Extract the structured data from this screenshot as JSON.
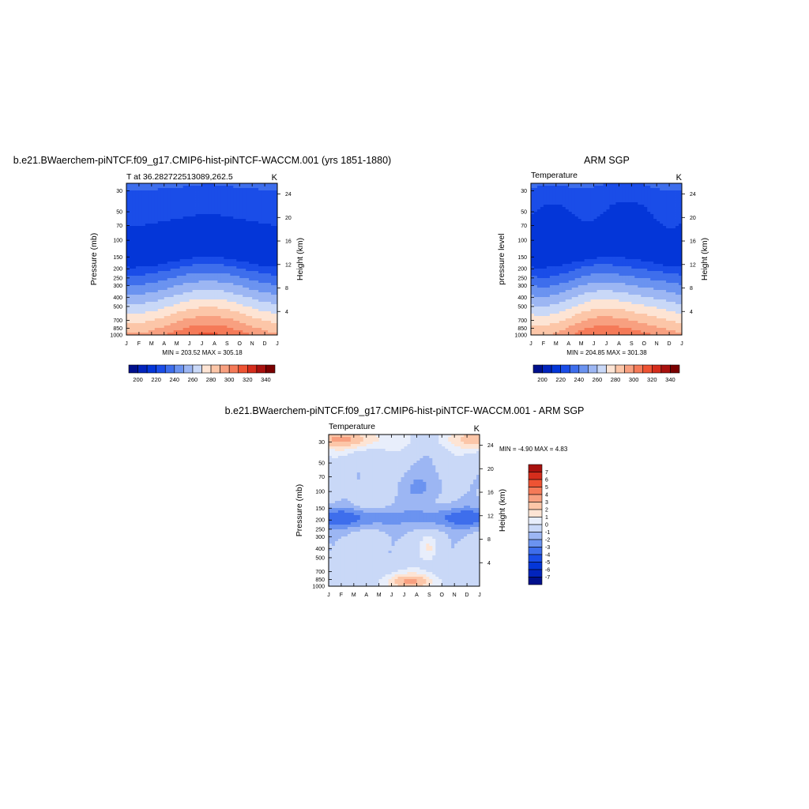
{
  "palettes": {
    "temperature": [
      "#00108c",
      "#0224bd",
      "#0436d8",
      "#1a4de8",
      "#3e6eec",
      "#6b93f0",
      "#9cb6f3",
      "#c9d8f7",
      "#fde4d4",
      "#fcc6a8",
      "#f8a080",
      "#f57a58",
      "#ee5333",
      "#d52d1c",
      "#a8110e",
      "#7a0000"
    ],
    "difference": [
      "#00108c",
      "#0224bd",
      "#0436d8",
      "#1a4de8",
      "#3e6eec",
      "#6b93f0",
      "#9cb6f3",
      "#c9d8f7",
      "#e8eefb",
      "#fde4d4",
      "#fcc6a8",
      "#f8a080",
      "#f57a58",
      "#ee5333",
      "#d52d1c",
      "#a8110e"
    ]
  },
  "chart_data": [
    {
      "type": "heatmap",
      "title": "b.e21.BWaerchem-piNTCF.f09_g17.CMIP6-hist-piNTCF-WACCM.001 (yrs 1851-1880)",
      "left_label": "T at 36.282722513089,262.5",
      "units_label": "K",
      "ylabel": "Pressure (mb)",
      "ylabel_right": "Height (km)",
      "x_ticks": [
        "J",
        "F",
        "M",
        "A",
        "M",
        "J",
        "J",
        "A",
        "S",
        "O",
        "N",
        "D",
        "J"
      ],
      "y_ticks": [
        "30",
        "50",
        "70",
        "100",
        "150",
        "200",
        "250",
        "300",
        "400",
        "500",
        "700",
        "850",
        "1000"
      ],
      "y_ticks_right": [
        "24",
        "20",
        "16",
        "12",
        "8",
        "4"
      ],
      "min_max_label": "MIN = 203.52 MAX = 305.18",
      "colorbar_labels": [
        "200",
        "220",
        "240",
        "260",
        "280",
        "300",
        "320",
        "340"
      ],
      "levels": [
        190,
        200,
        210,
        220,
        230,
        240,
        250,
        260,
        270,
        280,
        290,
        300,
        310,
        320,
        330,
        340
      ],
      "palette": "temperature"
    },
    {
      "type": "heatmap",
      "title": "ARM SGP",
      "left_label": "Temperature",
      "units_label": "K",
      "ylabel": "pressure level",
      "ylabel_right": "Height (km)",
      "x_ticks": [
        "J",
        "F",
        "M",
        "A",
        "M",
        "J",
        "J",
        "A",
        "S",
        "O",
        "N",
        "D",
        "J"
      ],
      "y_ticks": [
        "30",
        "50",
        "70",
        "100",
        "150",
        "200",
        "250",
        "300",
        "400",
        "500",
        "700",
        "850",
        "1000"
      ],
      "y_ticks_right": [
        "24",
        "20",
        "16",
        "12",
        "8",
        "4"
      ],
      "min_max_label": "MIN = 204.85 MAX = 301.38",
      "colorbar_labels": [
        "200",
        "220",
        "240",
        "260",
        "280",
        "300",
        "320",
        "340"
      ],
      "levels": [
        190,
        200,
        210,
        220,
        230,
        240,
        250,
        260,
        270,
        280,
        290,
        300,
        310,
        320,
        330,
        340
      ],
      "palette": "temperature"
    },
    {
      "type": "heatmap",
      "title": "b.e21.BWaerchem-piNTCF.f09_g17.CMIP6-hist-piNTCF-WACCM.001 - ARM SGP",
      "left_label": "Temperature",
      "units_label": "K",
      "ylabel": "Pressure (mb)",
      "ylabel_right": "Height (km)",
      "x_ticks": [
        "J",
        "F",
        "M",
        "A",
        "M",
        "J",
        "J",
        "A",
        "S",
        "O",
        "N",
        "D",
        "J"
      ],
      "y_ticks": [
        "30",
        "50",
        "70",
        "100",
        "150",
        "200",
        "250",
        "300",
        "400",
        "500",
        "700",
        "850",
        "1000"
      ],
      "y_ticks_right": [
        "24",
        "20",
        "16",
        "12",
        "8",
        "4"
      ],
      "min_max_label": "MIN =  -4.90 MAX =   4.83",
      "colorbar_labels": [
        "7",
        "6",
        "5",
        "4",
        "3",
        "2",
        "1",
        "0",
        "-1",
        "-2",
        "-3",
        "-4",
        "-5",
        "-6",
        "-7"
      ],
      "levels": [
        -7,
        -6,
        -5,
        -4,
        -3,
        -2,
        -1,
        0,
        1,
        2,
        3,
        4,
        5,
        6,
        7
      ],
      "palette": "difference"
    }
  ]
}
